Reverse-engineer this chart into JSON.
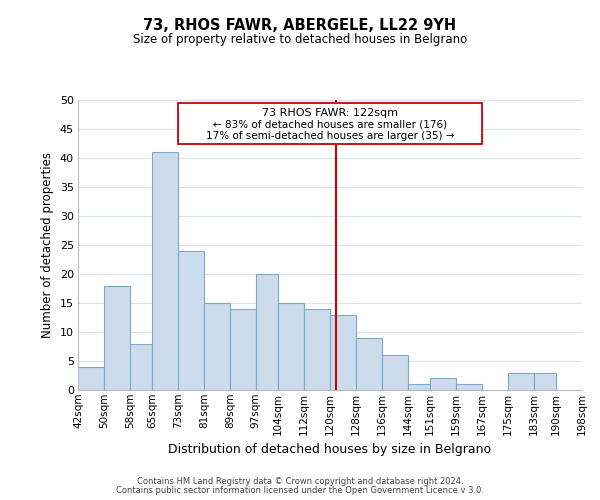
{
  "title": "73, RHOS FAWR, ABERGELE, LL22 9YH",
  "subtitle": "Size of property relative to detached houses in Belgrano",
  "xlabel": "Distribution of detached houses by size in Belgrano",
  "ylabel": "Number of detached properties",
  "footer_line1": "Contains HM Land Registry data © Crown copyright and database right 2024.",
  "footer_line2": "Contains public sector information licensed under the Open Government Licence v 3.0.",
  "bin_labels": [
    "42sqm",
    "50sqm",
    "58sqm",
    "65sqm",
    "73sqm",
    "81sqm",
    "89sqm",
    "97sqm",
    "104sqm",
    "112sqm",
    "120sqm",
    "128sqm",
    "136sqm",
    "144sqm",
    "151sqm",
    "159sqm",
    "167sqm",
    "175sqm",
    "183sqm",
    "190sqm",
    "198sqm"
  ],
  "bin_edges": [
    42,
    50,
    58,
    65,
    73,
    81,
    89,
    97,
    104,
    112,
    120,
    128,
    136,
    144,
    151,
    159,
    167,
    175,
    183,
    190,
    198
  ],
  "bar_heights": [
    4,
    18,
    8,
    41,
    24,
    15,
    14,
    20,
    15,
    14,
    13,
    9,
    6,
    1,
    2,
    1,
    0,
    3,
    3,
    0
  ],
  "bar_color": "#ccdcec",
  "bar_edgecolor": "#7aaac8",
  "vline_x": 122,
  "vline_color": "#cc0000",
  "ylim": [
    0,
    50
  ],
  "yticks": [
    0,
    5,
    10,
    15,
    20,
    25,
    30,
    35,
    40,
    45,
    50
  ],
  "annotation_title": "73 RHOS FAWR: 122sqm",
  "annotation_line1": "← 83% of detached houses are smaller (176)",
  "annotation_line2": "17% of semi-detached houses are larger (35) →",
  "background_color": "#ffffff",
  "grid_color": "#d8e4ec"
}
